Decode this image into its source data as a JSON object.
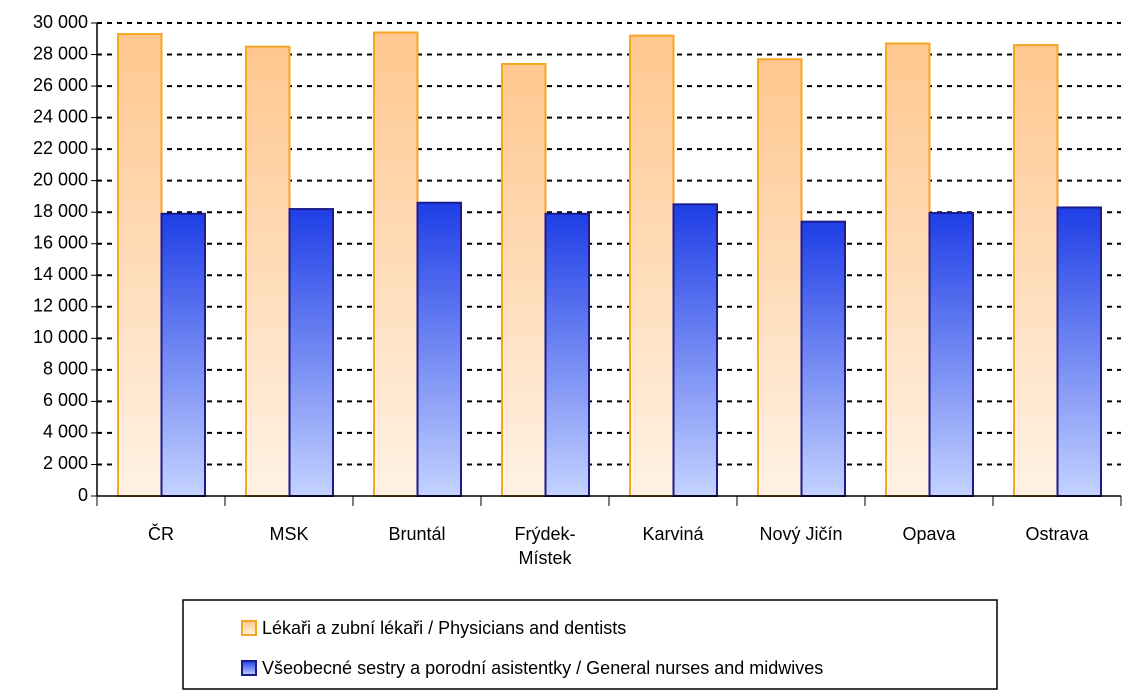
{
  "chart_data": {
    "type": "bar",
    "categories": [
      "ČR",
      "MSK",
      "Bruntál",
      "Frýdek-Místek",
      "Karviná",
      "Nový Jičín",
      "Opava",
      "Ostrava"
    ],
    "series": [
      {
        "name": "Lékaři a zubní lékaři / Physicians and dentists",
        "color": "#f5a623",
        "values": [
          29300,
          28500,
          29400,
          27400,
          29200,
          27700,
          28700,
          28600
        ]
      },
      {
        "name": "Všeobecné sestry a porodní asistentky / General nurses and midwives",
        "color": "#1c1c8c",
        "values": [
          17900,
          18200,
          18600,
          17900,
          18500,
          17400,
          17950,
          18300
        ]
      }
    ],
    "ylim": [
      0,
      30000
    ],
    "yticks": [
      0,
      {
        "value": 2000,
        "label": "2 000"
      },
      {
        "value": 4000,
        "label": "4 000"
      },
      {
        "value": 6000,
        "label": "6 000"
      },
      {
        "value": 8000,
        "label": "8 000"
      },
      {
        "value": 10000,
        "label": "10 000"
      },
      {
        "value": 12000,
        "label": "12 000"
      },
      {
        "value": 14000,
        "label": "14 000"
      },
      {
        "value": 16000,
        "label": "16 000"
      },
      {
        "value": 18000,
        "label": "18 000"
      },
      {
        "value": 20000,
        "label": "20 000"
      },
      {
        "value": 22000,
        "label": "22 000"
      },
      {
        "value": 24000,
        "label": "24 000"
      },
      {
        "value": 26000,
        "label": "26 000"
      },
      {
        "value": 28000,
        "label": "28 000"
      },
      {
        "value": 30000,
        "label": "30 000"
      }
    ],
    "grid": true
  }
}
